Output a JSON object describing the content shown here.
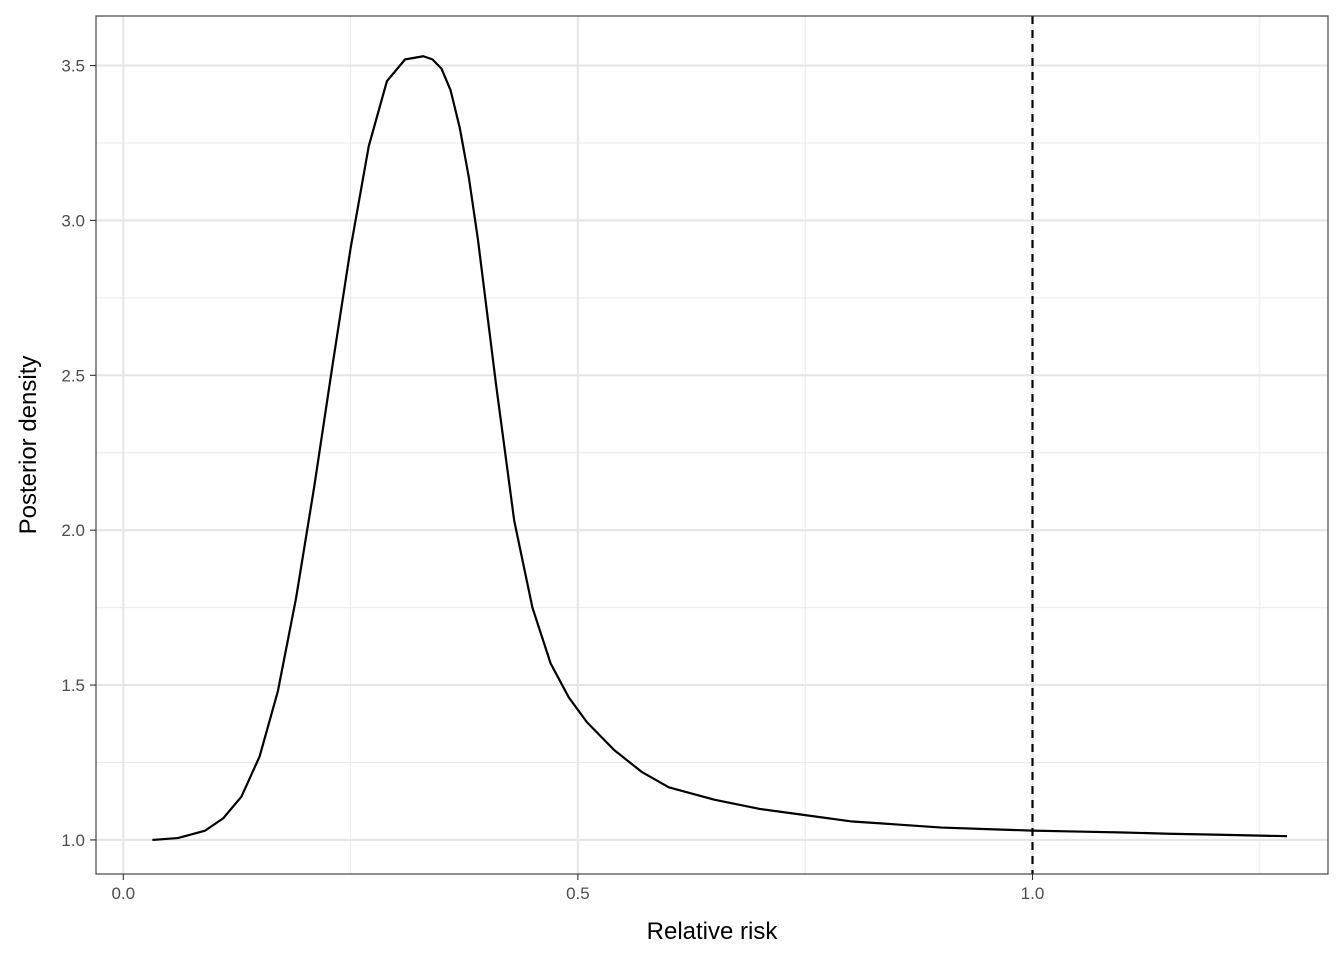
{
  "chart_data": {
    "type": "line",
    "title": "",
    "xlabel": "Relative risk",
    "ylabel": "Posterior density",
    "xlim": [
      -0.03,
      1.325
    ],
    "ylim": [
      0.89,
      3.66
    ],
    "x_ticks": [
      0.0,
      0.5,
      1.0
    ],
    "x_tick_labels": [
      "0.0",
      "0.5",
      "1.0"
    ],
    "x_minor_ticks": [
      0.25,
      0.75,
      1.25
    ],
    "y_ticks": [
      1.0,
      1.5,
      2.0,
      2.5,
      3.0,
      3.5
    ],
    "y_tick_labels": [
      "1.0",
      "1.5",
      "2.0",
      "2.5",
      "3.0",
      "3.5"
    ],
    "y_minor_ticks": [
      1.25,
      1.75,
      2.25,
      2.75,
      3.25
    ],
    "grid": true,
    "reference_line": {
      "orientation": "vertical",
      "x": 1.0,
      "style": "dashed",
      "color": "#000000"
    },
    "series": [
      {
        "name": "posterior density",
        "color": "#000000",
        "x": [
          0.032,
          0.06,
          0.09,
          0.11,
          0.13,
          0.15,
          0.17,
          0.19,
          0.21,
          0.23,
          0.25,
          0.27,
          0.29,
          0.31,
          0.33,
          0.34,
          0.35,
          0.36,
          0.37,
          0.38,
          0.39,
          0.41,
          0.43,
          0.45,
          0.47,
          0.49,
          0.51,
          0.54,
          0.57,
          0.6,
          0.65,
          0.7,
          0.75,
          0.8,
          0.85,
          0.9,
          0.95,
          1.0,
          1.05,
          1.1,
          1.15,
          1.2,
          1.25,
          1.28
        ],
        "y": [
          1.0,
          1.006,
          1.03,
          1.07,
          1.14,
          1.27,
          1.48,
          1.78,
          2.14,
          2.53,
          2.91,
          3.24,
          3.45,
          3.52,
          3.53,
          3.52,
          3.49,
          3.42,
          3.3,
          3.14,
          2.94,
          2.47,
          2.03,
          1.75,
          1.57,
          1.46,
          1.38,
          1.29,
          1.22,
          1.17,
          1.13,
          1.1,
          1.08,
          1.06,
          1.05,
          1.04,
          1.035,
          1.03,
          1.027,
          1.024,
          1.02,
          1.017,
          1.014,
          1.012
        ]
      }
    ]
  }
}
